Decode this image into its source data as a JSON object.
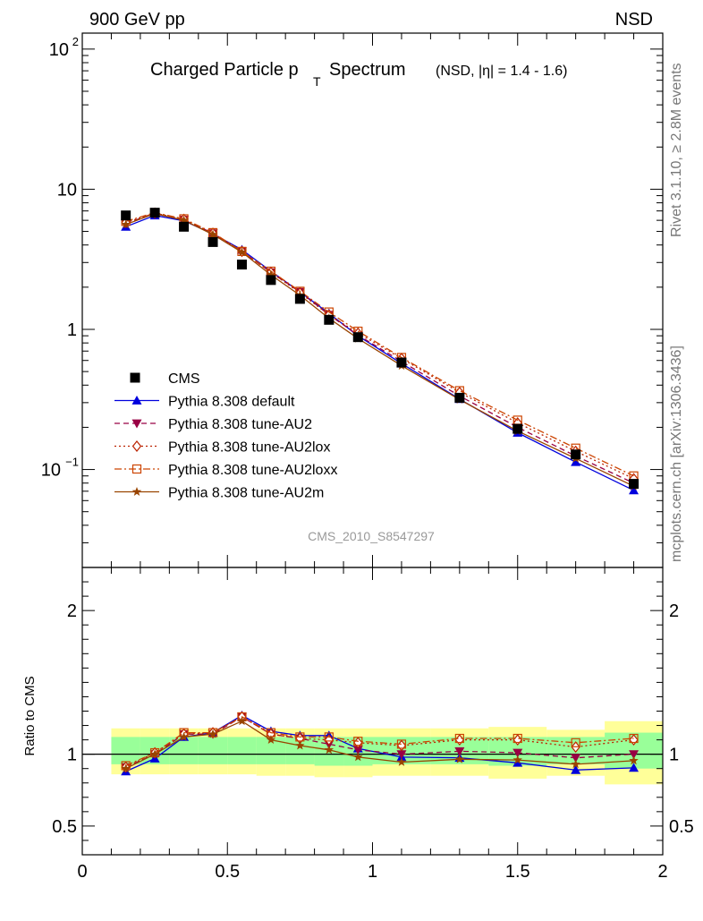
{
  "header": {
    "left": "900 GeV pp",
    "right": "NSD"
  },
  "side_labels": {
    "top": "Rivet 3.1.10, ≥ 2.8M events",
    "bottom": "mcplots.cern.ch [arXiv:1306.3436]"
  },
  "chart_data": [
    {
      "type": "scatter",
      "title_main": "Charged Particle p",
      "title_sub": "T",
      "title_tail": "Spectrum",
      "title_note": "(NSD, |η| = 1.4 - 1.6)",
      "watermark": "CMS_2010_S8547297",
      "ylog": true,
      "xlim": [
        0,
        2
      ],
      "ylim": [
        0.02,
        130
      ],
      "y_ticks": [
        {
          "v": 0.1,
          "base": "10",
          "sup": "−1"
        },
        {
          "v": 1,
          "base": "1",
          "sup": ""
        },
        {
          "v": 10,
          "base": "10",
          "sup": ""
        },
        {
          "v": 100,
          "base": "10",
          "sup": "2"
        }
      ],
      "x": [
        0.15,
        0.25,
        0.35,
        0.45,
        0.55,
        0.65,
        0.75,
        0.85,
        0.95,
        1.1,
        1.3,
        1.5,
        1.7,
        1.9
      ],
      "data": {
        "name": "CMS",
        "values": [
          6.5,
          6.8,
          5.4,
          4.2,
          2.9,
          2.25,
          1.65,
          1.17,
          0.88,
          0.58,
          0.325,
          0.195,
          0.128,
          0.079
        ]
      },
      "series": [
        {
          "name": "Pythia 8.308 default",
          "color": "#0000dd",
          "dash": "",
          "marker": "triangle-up",
          "values": [
            5.4,
            6.5,
            5.95,
            4.8,
            3.7,
            2.6,
            1.85,
            1.3,
            0.9,
            0.57,
            0.318,
            0.183,
            0.113,
            0.071
          ]
        },
        {
          "name": "Pythia 8.308 tune-AU2",
          "color": "#990044",
          "dash": "6,4",
          "marker": "triangle-down",
          "values": [
            5.7,
            6.7,
            6.05,
            4.85,
            3.6,
            2.55,
            1.85,
            1.27,
            0.91,
            0.59,
            0.335,
            0.2,
            0.125,
            0.08
          ]
        },
        {
          "name": "Pythia 8.308 tune-AU2lox",
          "color": "#bb2200",
          "dash": "2,3",
          "marker": "diamond",
          "values": [
            5.8,
            6.75,
            6.1,
            4.85,
            3.6,
            2.55,
            1.82,
            1.27,
            0.94,
            0.62,
            0.355,
            0.215,
            0.135,
            0.086
          ]
        },
        {
          "name": "Pythia 8.308 tune-AU2loxx",
          "color": "#cc4400",
          "dash": "8,3,2,3",
          "marker": "square-open",
          "values": [
            5.9,
            6.8,
            6.15,
            4.9,
            3.6,
            2.6,
            1.87,
            1.33,
            0.97,
            0.63,
            0.365,
            0.225,
            0.142,
            0.09
          ]
        },
        {
          "name": "Pythia 8.308 tune-AU2m",
          "color": "#994400",
          "dash": "",
          "marker": "star",
          "values": [
            5.6,
            6.7,
            6.0,
            4.75,
            3.55,
            2.45,
            1.75,
            1.2,
            0.86,
            0.55,
            0.315,
            0.188,
            0.12,
            0.076
          ]
        }
      ]
    },
    {
      "type": "line",
      "ylabel": "Ratio to CMS",
      "xlim": [
        0,
        2
      ],
      "ylim": [
        0.3,
        2.3
      ],
      "y_ticks": [
        0.5,
        1,
        2
      ],
      "y_tick_labels": [
        "0.5",
        "1",
        "2"
      ],
      "x_ticks": [
        0,
        0.5,
        1,
        1.5,
        2
      ],
      "x_tick_labels": [
        "0",
        "0.5",
        "1",
        "1.5",
        "2"
      ],
      "reference": 1,
      "bands": {
        "bin_edges": [
          0.1,
          0.2,
          0.3,
          0.4,
          0.5,
          0.6,
          0.7,
          0.8,
          0.9,
          1.0,
          1.2,
          1.4,
          1.6,
          1.8,
          2.0
        ],
        "outer": [
          [
            0.86,
            1.18
          ],
          [
            0.86,
            1.18
          ],
          [
            0.86,
            1.18
          ],
          [
            0.86,
            1.18
          ],
          [
            0.86,
            1.18
          ],
          [
            0.85,
            1.18
          ],
          [
            0.85,
            1.18
          ],
          [
            0.84,
            1.18
          ],
          [
            0.84,
            1.18
          ],
          [
            0.85,
            1.18
          ],
          [
            0.85,
            1.18
          ],
          [
            0.83,
            1.19
          ],
          [
            0.85,
            1.17
          ],
          [
            0.79,
            1.23
          ]
        ],
        "inner": [
          [
            0.93,
            1.12
          ],
          [
            0.93,
            1.12
          ],
          [
            0.93,
            1.12
          ],
          [
            0.93,
            1.12
          ],
          [
            0.93,
            1.12
          ],
          [
            0.93,
            1.12
          ],
          [
            0.93,
            1.12
          ],
          [
            0.92,
            1.12
          ],
          [
            0.92,
            1.12
          ],
          [
            0.93,
            1.12
          ],
          [
            0.93,
            1.12
          ],
          [
            0.92,
            1.12
          ],
          [
            0.93,
            1.12
          ],
          [
            0.9,
            1.15
          ]
        ]
      },
      "x": [
        0.15,
        0.25,
        0.35,
        0.45,
        0.55,
        0.65,
        0.75,
        0.85,
        0.95,
        1.1,
        1.3,
        1.5,
        1.7,
        1.9
      ],
      "series": [
        {
          "name": "Pythia 8.308 default",
          "values": [
            0.88,
            0.97,
            1.12,
            1.15,
            1.27,
            1.16,
            1.13,
            1.13,
            1.04,
            0.98,
            0.975,
            0.94,
            0.89,
            0.905
          ]
        },
        {
          "name": "Pythia 8.308 tune-AU2",
          "values": [
            0.91,
            1.0,
            1.14,
            1.14,
            1.26,
            1.14,
            1.11,
            1.07,
            1.03,
            1.0,
            1.02,
            1.01,
            0.975,
            1.0
          ]
        },
        {
          "name": "Pythia 8.308 tune-AU2lox",
          "values": [
            0.91,
            1.01,
            1.14,
            1.15,
            1.26,
            1.14,
            1.11,
            1.1,
            1.08,
            1.06,
            1.1,
            1.1,
            1.05,
            1.1
          ]
        },
        {
          "name": "Pythia 8.308 tune-AU2loxx",
          "values": [
            0.92,
            1.01,
            1.15,
            1.15,
            1.26,
            1.15,
            1.12,
            1.12,
            1.09,
            1.07,
            1.11,
            1.11,
            1.08,
            1.11
          ]
        },
        {
          "name": "Pythia 8.308 tune-AU2m",
          "values": [
            0.9,
            1.0,
            1.12,
            1.14,
            1.23,
            1.1,
            1.06,
            1.03,
            0.98,
            0.945,
            0.965,
            0.96,
            0.93,
            0.955
          ]
        }
      ]
    }
  ]
}
